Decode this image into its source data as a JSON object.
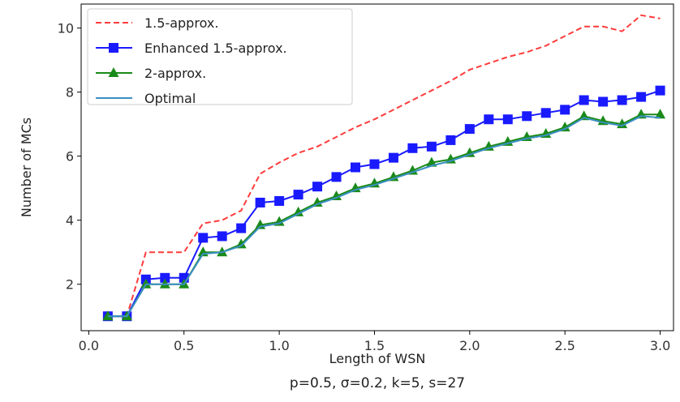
{
  "chart_data": {
    "type": "line",
    "xlabel": "Length of WSN",
    "ylabel": "Number of MCs",
    "caption": "p=0.5, σ=0.2, k=5, s=27",
    "xlim": [
      -0.04,
      3.07
    ],
    "ylim": [
      0.55,
      10.75
    ],
    "xticks": [
      "0.0",
      "0.5",
      "1.0",
      "1.5",
      "2.0",
      "2.5",
      "3.0"
    ],
    "yticks": [
      "2",
      "4",
      "6",
      "8",
      "10"
    ],
    "grid": false,
    "legend_position": "top-left",
    "x": [
      0.1,
      0.2,
      0.3,
      0.4,
      0.5,
      0.6,
      0.7,
      0.8,
      0.9,
      1.0,
      1.1,
      1.2,
      1.3,
      1.4,
      1.5,
      1.6,
      1.7,
      1.8,
      1.9,
      2.0,
      2.1,
      2.2,
      2.3,
      2.4,
      2.5,
      2.6,
      2.7,
      2.8,
      2.9,
      3.0
    ],
    "series": [
      {
        "name": "1.5-approx.",
        "color": "#ff3b3b",
        "style": "dashed",
        "marker": "none",
        "values": [
          1.0,
          1.0,
          3.0,
          3.0,
          3.0,
          3.9,
          4.0,
          4.3,
          5.45,
          5.8,
          6.1,
          6.3,
          6.6,
          6.9,
          7.15,
          7.45,
          7.75,
          8.05,
          8.35,
          8.7,
          8.9,
          9.1,
          9.25,
          9.45,
          9.75,
          10.05,
          10.05,
          9.9,
          10.4,
          10.3
        ]
      },
      {
        "name": "Enhanced 1.5-approx.",
        "color": "#1a1aff",
        "style": "solid",
        "marker": "square",
        "values": [
          1.0,
          1.0,
          2.15,
          2.2,
          2.2,
          3.45,
          3.5,
          3.75,
          4.55,
          4.6,
          4.8,
          5.05,
          5.35,
          5.65,
          5.75,
          5.95,
          6.25,
          6.3,
          6.5,
          6.85,
          7.15,
          7.15,
          7.25,
          7.35,
          7.45,
          7.75,
          7.7,
          7.75,
          7.85,
          8.05
        ]
      },
      {
        "name": "2-approx.",
        "color": "#1a8a1a",
        "style": "solid",
        "marker": "triangle",
        "values": [
          1.0,
          1.0,
          2.0,
          2.0,
          2.0,
          3.0,
          3.0,
          3.25,
          3.85,
          3.95,
          4.25,
          4.55,
          4.75,
          5.0,
          5.15,
          5.35,
          5.55,
          5.8,
          5.9,
          6.1,
          6.3,
          6.45,
          6.6,
          6.7,
          6.9,
          7.25,
          7.1,
          7.0,
          7.3,
          7.3
        ]
      },
      {
        "name": "Optimal",
        "color": "#3b8fc4",
        "style": "solid",
        "marker": "none",
        "values": [
          1.0,
          1.0,
          2.0,
          2.0,
          2.0,
          2.95,
          3.0,
          3.2,
          3.8,
          3.9,
          4.2,
          4.5,
          4.7,
          4.95,
          5.1,
          5.3,
          5.5,
          5.7,
          5.85,
          6.05,
          6.25,
          6.4,
          6.55,
          6.65,
          6.85,
          7.2,
          7.05,
          6.95,
          7.25,
          7.2
        ]
      }
    ]
  }
}
